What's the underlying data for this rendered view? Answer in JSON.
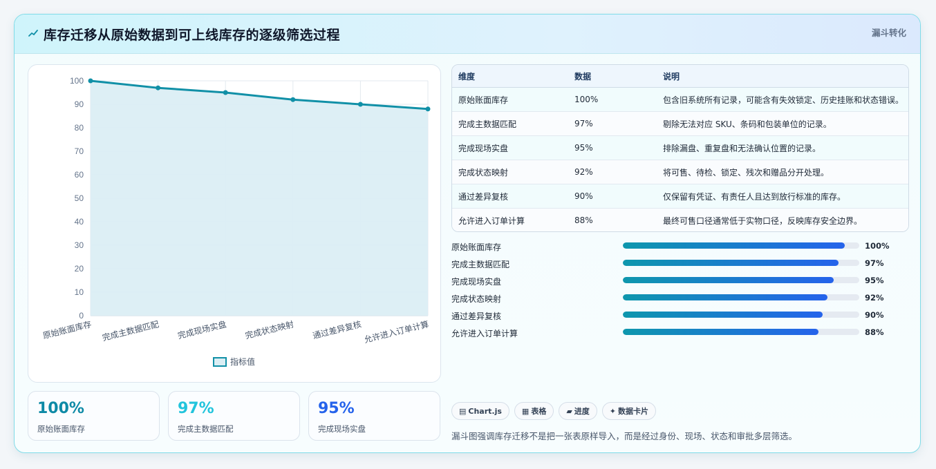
{
  "header": {
    "title": "库存迁移从原始数据到可上线库存的逐级筛选过程",
    "badge": "漏斗转化"
  },
  "chart_data": {
    "type": "area",
    "categories": [
      "原始账面库存",
      "完成主数据匹配",
      "完成现场实盘",
      "完成状态映射",
      "通过差异复核",
      "允许进入订单计算"
    ],
    "series": [
      {
        "name": "指标值",
        "values": [
          100,
          97,
          95,
          92,
          90,
          88
        ]
      }
    ],
    "ylim": [
      0,
      100
    ],
    "yticks": [
      0,
      10,
      20,
      30,
      40,
      50,
      60,
      70,
      80,
      90,
      100
    ],
    "grid": true,
    "legend": "bottom",
    "colors": {
      "line": "#1190a7",
      "fill": "#dbeef4"
    }
  },
  "stats": [
    {
      "value": "100%",
      "label": "原始账面库存",
      "color": "#0e8aa6"
    },
    {
      "value": "97%",
      "label": "完成主数据匹配",
      "color": "#22c4dc"
    },
    {
      "value": "95%",
      "label": "完成现场实盘",
      "color": "#2563eb"
    }
  ],
  "table": {
    "headers": [
      "维度",
      "数据",
      "说明"
    ],
    "rows": [
      [
        "原始账面库存",
        "100%",
        "包含旧系统所有记录，可能含有失效锁定、历史挂账和状态错误。"
      ],
      [
        "完成主数据匹配",
        "97%",
        "剔除无法对应 SKU、条码和包装单位的记录。"
      ],
      [
        "完成现场实盘",
        "95%",
        "排除漏盘、重复盘和无法确认位置的记录。"
      ],
      [
        "完成状态映射",
        "92%",
        "将可售、待检、锁定、残次和赠品分开处理。"
      ],
      [
        "通过差异复核",
        "90%",
        "仅保留有凭证、有责任人且达到放行标准的库存。"
      ],
      [
        "允许进入订单计算",
        "88%",
        "最终可售口径通常低于实物口径，反映库存安全边界。"
      ]
    ]
  },
  "progress": [
    {
      "label": "原始账面库存",
      "value": 100,
      "text": "100%"
    },
    {
      "label": "完成主数据匹配",
      "value": 97,
      "text": "97%"
    },
    {
      "label": "完成现场实盘",
      "value": 95,
      "text": "95%"
    },
    {
      "label": "完成状态映射",
      "value": 92,
      "text": "92%"
    },
    {
      "label": "通过差异复核",
      "value": 90,
      "text": "90%"
    },
    {
      "label": "允许进入订单计算",
      "value": 88,
      "text": "88%"
    }
  ],
  "chips": [
    {
      "icon": "▤",
      "icon_name": "chart-icon",
      "label": "Chart.js"
    },
    {
      "icon": "▦",
      "icon_name": "table-icon",
      "label": "表格"
    },
    {
      "icon": "▰",
      "icon_name": "progress-icon",
      "label": "进度"
    },
    {
      "icon": "✦",
      "icon_name": "sparkle-icon",
      "label": "数据卡片"
    }
  ],
  "footnote": "漏斗图强调库存迁移不是把一张表原样导入，而是经过身份、现场、状态和审批多层筛选。"
}
